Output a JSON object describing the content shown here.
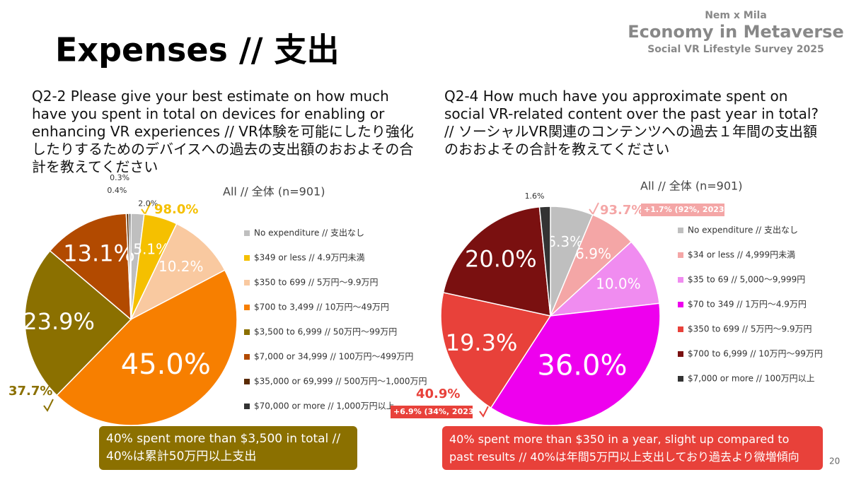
{
  "slide": {
    "title": "Expenses // 支出",
    "brand_top": "Nem x Mila",
    "brand_main": "Economy in Metaverse",
    "brand_sub": "Social VR Lifestyle Survey 2025",
    "page_number": "20"
  },
  "chart_data": [
    {
      "type": "pie",
      "title": "Q2-2 Please give your best estimate on how much have you spent in total on devices for enabling or enhancing VR experiences // VR体験を可能にしたり強化したりするためのデバイスへの過去の支出額のおおよその合計を教えてください",
      "subtitle": "All // 全体 (n=901)",
      "categories": [
        "No expenditure // 支出なし",
        "$349 or less // 4.9万円未満",
        "$350 to 699 // 5万円～9.9万円",
        "$700 to 3,499 // 10万円～49万円",
        "$3,500 to 6,999 // 50万円～99万円",
        "$7,000 or 34,999 // 100万円～499万円",
        "$35,000 or 69,999 // 500万円～1,000万円",
        "$70,000 or more // 1,000万円以上"
      ],
      "values": [
        2.0,
        5.1,
        10.2,
        45.0,
        23.9,
        13.1,
        0.4,
        0.3
      ],
      "value_labels": [
        "2.0%",
        "5.1%",
        "10.2%",
        "45.0%",
        "23.9%",
        "13.1%",
        "0.4%",
        "0.3%"
      ],
      "colors": [
        "#bfbfbf",
        "#f5c000",
        "#f9c9a0",
        "#f77f00",
        "#8b7000",
        "#b24a00",
        "#5a2a00",
        "#333333"
      ],
      "annotations": [
        "98.0%",
        "37.7%"
      ],
      "note": "40% spent more than $3,500 in total // 40%は累計50万円以上支出"
    },
    {
      "type": "pie",
      "title": "Q2-4 How much have you approximate spent on social VR-related content over the past year in total? // ソーシャルVR関連のコンテンツへの過去１年間の支出額のおおよその合計を教えてください",
      "subtitle": "All // 全体 (n=901)",
      "categories": [
        "No expenditure // 支出なし",
        "$34 or less // 4,999円未満",
        "$35 to 69 // 5,000～9,999円",
        "$70 to 349 // 1万円～4.9万円",
        "$350 to 699 // 5万円～9.9万円",
        "$700 to 6,999 // 10万円～99万円",
        "$7,000 or more // 100万円以上"
      ],
      "values": [
        6.3,
        6.9,
        10.0,
        36.0,
        19.3,
        20.0,
        1.6
      ],
      "value_labels": [
        "6.3%",
        "6.9%",
        "10.0%",
        "36.0%",
        "19.3%",
        "20.0%",
        "1.6%"
      ],
      "colors": [
        "#bfbfbf",
        "#f4a6a6",
        "#f08cf0",
        "#ee00ee",
        "#e8413a",
        "#7a1010",
        "#333333"
      ],
      "annotations": [
        "93.7%",
        "+1.7% (92%, 2023)",
        "40.9%",
        "+6.9% (34%, 2023)"
      ],
      "note": "40% spent more than $350 in a year, slight up compared to past results // 40%は年間5万円以上支出しており過去より微増傾向"
    }
  ]
}
